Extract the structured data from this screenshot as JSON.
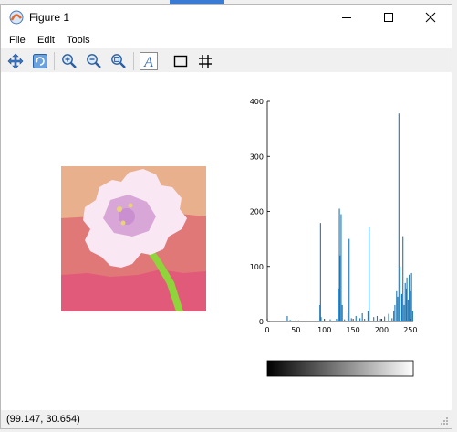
{
  "window": {
    "title": "Figure 1"
  },
  "menu": {
    "items": [
      {
        "label": "File"
      },
      {
        "label": "Edit"
      },
      {
        "label": "Tools"
      }
    ]
  },
  "toolbar": {
    "tools": [
      {
        "icon": "pan-icon"
      },
      {
        "icon": "reset-view-icon"
      },
      {
        "icon": "zoom-in-icon"
      },
      {
        "icon": "zoom-out-icon"
      },
      {
        "icon": "zoom-fit-icon"
      },
      {
        "icon": "text-icon",
        "label": "A"
      },
      {
        "icon": "rectangle-icon"
      },
      {
        "icon": "grid-icon"
      }
    ]
  },
  "status": {
    "coordinates": "(99.147, 30.654)"
  },
  "colors": {
    "hist_bar": "#1f77b4",
    "sky": "#e8b08c",
    "band_mid": "#e07878",
    "band_low": "#e25a7a",
    "petal": "#f9e8f3",
    "center": "#d9a6d8",
    "stem": "#8ed43a"
  },
  "chart_data": {
    "type": "bar",
    "title": "",
    "xlabel": "",
    "ylabel": "",
    "xlim": [
      0,
      255
    ],
    "ylim": [
      0,
      400
    ],
    "xticks": [
      "0",
      "50",
      "100",
      "150",
      "200",
      "250"
    ],
    "yticks": [
      "0",
      "100",
      "200",
      "300",
      "400"
    ],
    "grid": false,
    "bins": [
      [
        35,
        10
      ],
      [
        40,
        3
      ],
      [
        55,
        2
      ],
      [
        92,
        30
      ],
      [
        93,
        179
      ],
      [
        94,
        8
      ],
      [
        110,
        4
      ],
      [
        121,
        5
      ],
      [
        124,
        60
      ],
      [
        126,
        205
      ],
      [
        127,
        120
      ],
      [
        129,
        195
      ],
      [
        131,
        30
      ],
      [
        135,
        4
      ],
      [
        141,
        15
      ],
      [
        143,
        150
      ],
      [
        147,
        6
      ],
      [
        155,
        10
      ],
      [
        162,
        6
      ],
      [
        166,
        15
      ],
      [
        170,
        5
      ],
      [
        176,
        20
      ],
      [
        178,
        172
      ],
      [
        186,
        8
      ],
      [
        192,
        10
      ],
      [
        198,
        5
      ],
      [
        205,
        9
      ],
      [
        212,
        14
      ],
      [
        218,
        6
      ],
      [
        221,
        20
      ],
      [
        223,
        30
      ],
      [
        226,
        55
      ],
      [
        228,
        45
      ],
      [
        230,
        378
      ],
      [
        232,
        100
      ],
      [
        235,
        50
      ],
      [
        237,
        155
      ],
      [
        239,
        30
      ],
      [
        241,
        70
      ],
      [
        243,
        60
      ],
      [
        244,
        80
      ],
      [
        246,
        40
      ],
      [
        248,
        85
      ],
      [
        250,
        55
      ],
      [
        252,
        88
      ],
      [
        254,
        20
      ]
    ],
    "colorbar": {
      "range": [
        0,
        255
      ],
      "from_color": "#000000",
      "to_color": "#ffffff"
    }
  }
}
